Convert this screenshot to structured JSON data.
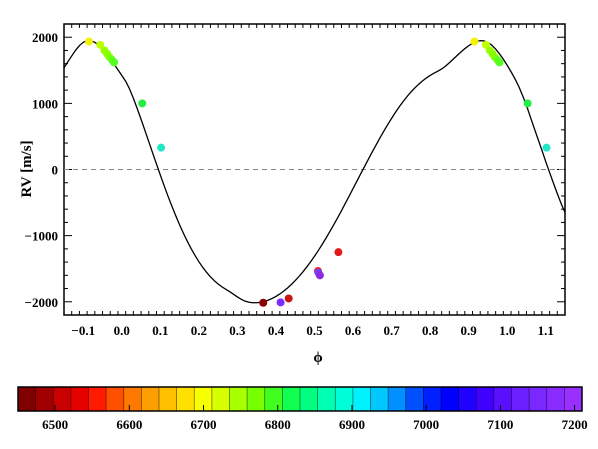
{
  "chart_data": {
    "type": "scatter",
    "xlabel": "ϕ",
    "ylabel": "RV [m/s]",
    "xlim": [
      -0.15,
      1.15
    ],
    "ylim": [
      -2200,
      2200
    ],
    "x_ticks": [
      -0.1,
      0.0,
      0.1,
      0.2,
      0.3,
      0.4,
      0.5,
      0.6,
      0.7,
      0.8,
      0.9,
      1.0,
      1.1
    ],
    "x_tick_labels": [
      "−0.1",
      "0.0",
      "0.1",
      "0.2",
      "0.3",
      "0.4",
      "0.5",
      "0.6",
      "0.7",
      "0.8",
      "0.9",
      "1.0",
      "1.1"
    ],
    "y_ticks": [
      2000,
      1000,
      0,
      -1000,
      -2000
    ],
    "y_tick_labels": [
      "2000",
      "1000",
      "0",
      "−1000",
      "−2000"
    ],
    "zero_line": {
      "y": 0,
      "style": "dashed",
      "color": "#888888"
    },
    "model_curve": {
      "type": "line",
      "color": "#000000",
      "x": [
        -0.15,
        -0.14,
        -0.13,
        -0.12,
        -0.11,
        -0.1,
        -0.09,
        -0.08,
        -0.07,
        -0.06,
        -0.05,
        -0.04,
        -0.03,
        -0.02,
        -0.01,
        0.0,
        0.01,
        0.02,
        0.03,
        0.04,
        0.05,
        0.06,
        0.07,
        0.08,
        0.09,
        0.1,
        0.11,
        0.12,
        0.13,
        0.14,
        0.15,
        0.16,
        0.17,
        0.18,
        0.19,
        0.2,
        0.21,
        0.22,
        0.23,
        0.24,
        0.25,
        0.26,
        0.27,
        0.28,
        0.29,
        0.3,
        0.31,
        0.32,
        0.33,
        0.34,
        0.35,
        0.36,
        0.37,
        0.38,
        0.39,
        0.4,
        0.41,
        0.42,
        0.43,
        0.44,
        0.45,
        0.46,
        0.47,
        0.48,
        0.49,
        0.5,
        0.51,
        0.52,
        0.53,
        0.54,
        0.55,
        0.56,
        0.57,
        0.58,
        0.59,
        0.6,
        0.61,
        0.62,
        0.63,
        0.64,
        0.65,
        0.66,
        0.67,
        0.68,
        0.69,
        0.7,
        0.71,
        0.72,
        0.73,
        0.74,
        0.75,
        0.76,
        0.77,
        0.78,
        0.79,
        0.8,
        0.81,
        0.82,
        0.83,
        0.84,
        0.85,
        0.86,
        0.87,
        0.88,
        0.89,
        0.9,
        0.91,
        0.92,
        0.93,
        0.94,
        0.95,
        0.96,
        0.97,
        0.98,
        0.99,
        1.0,
        1.01,
        1.02,
        1.03,
        1.04,
        1.05,
        1.06,
        1.07,
        1.08,
        1.09,
        1.1,
        1.11,
        1.12,
        1.13,
        1.14,
        1.15
      ],
      "y": [
        1538,
        1628,
        1717,
        1802,
        1874,
        1924,
        1948,
        1947,
        1923,
        1880,
        1821,
        1751,
        1674,
        1592,
        1508,
        1421,
        1335,
        1219,
        1077,
        921,
        758,
        591,
        421,
        251,
        82,
        -85,
        -247,
        -405,
        -556,
        -700,
        -837,
        -966,
        -1086,
        -1198,
        -1300,
        -1394,
        -1479,
        -1555,
        -1622,
        -1681,
        -1732,
        -1775,
        -1812,
        -1848,
        -1887,
        -1927,
        -1963,
        -1991,
        -2007,
        -2015,
        -2015,
        -2008,
        -1995,
        -1975,
        -1950,
        -1919,
        -1882,
        -1839,
        -1792,
        -1739,
        -1680,
        -1616,
        -1547,
        -1473,
        -1395,
        -1311,
        -1224,
        -1132,
        -1036,
        -937,
        -835,
        -730,
        -622,
        -512,
        -401,
        -289,
        -176,
        -64,
        47,
        158,
        267,
        374,
        479,
        581,
        679,
        773,
        863,
        948,
        1028,
        1102,
        1170,
        1232,
        1288,
        1338,
        1383,
        1422,
        1456,
        1486,
        1520,
        1563,
        1614,
        1669,
        1724,
        1777,
        1827,
        1871,
        1908,
        1935,
        1948,
        1944,
        1921,
        1880,
        1821,
        1749,
        1667,
        1576,
        1478,
        1373,
        1257,
        1117,
        969,
        797,
        626,
        459,
        292,
        120,
        -44,
        -206,
        -365,
        -516,
        -652
      ]
    },
    "points": [
      {
        "x": -0.085,
        "y": 1935,
        "value": 6800,
        "color": "#f2f200"
      },
      {
        "x": -0.056,
        "y": 1885,
        "value": 6820,
        "color": "#bfff00"
      },
      {
        "x": -0.045,
        "y": 1800,
        "value": 6840,
        "color": "#99ff00"
      },
      {
        "x": -0.038,
        "y": 1750,
        "value": 6850,
        "color": "#8cff00"
      },
      {
        "x": -0.032,
        "y": 1700,
        "value": 6855,
        "color": "#80ff00"
      },
      {
        "x": -0.025,
        "y": 1655,
        "value": 6860,
        "color": "#66ff1a"
      },
      {
        "x": -0.02,
        "y": 1620,
        "value": 6865,
        "color": "#55ff22"
      },
      {
        "x": 0.053,
        "y": 1000,
        "value": 6890,
        "color": "#22ee44"
      },
      {
        "x": 0.102,
        "y": 330,
        "value": 6960,
        "color": "#22e8c8"
      },
      {
        "x": 0.367,
        "y": -2015,
        "value": 6480,
        "color": "#8b0000"
      },
      {
        "x": 0.412,
        "y": -2010,
        "value": 7180,
        "color": "#7d2cff"
      },
      {
        "x": 0.433,
        "y": -1950,
        "value": 6520,
        "color": "#c81414"
      },
      {
        "x": 0.509,
        "y": -1535,
        "value": 6560,
        "color": "#ee2222"
      },
      {
        "x": 0.51,
        "y": -1560,
        "value": 7150,
        "color": "#7040ff"
      },
      {
        "x": 0.514,
        "y": -1600,
        "value": 7200,
        "color": "#8a2be2"
      },
      {
        "x": 0.562,
        "y": -1250,
        "value": 6540,
        "color": "#e01a1a"
      },
      {
        "x": 0.915,
        "y": 1935,
        "value": 6800,
        "color": "#f2f200"
      },
      {
        "x": 0.945,
        "y": 1885,
        "value": 6820,
        "color": "#bfff00"
      },
      {
        "x": 0.955,
        "y": 1800,
        "value": 6840,
        "color": "#99ff00"
      },
      {
        "x": 0.962,
        "y": 1750,
        "value": 6850,
        "color": "#8cff00"
      },
      {
        "x": 0.968,
        "y": 1700,
        "value": 6855,
        "color": "#80ff00"
      },
      {
        "x": 0.975,
        "y": 1655,
        "value": 6860,
        "color": "#66ff1a"
      },
      {
        "x": 0.98,
        "y": 1620,
        "value": 6865,
        "color": "#55ff22"
      },
      {
        "x": 1.053,
        "y": 1000,
        "value": 6890,
        "color": "#22ee44"
      },
      {
        "x": 1.102,
        "y": 330,
        "value": 6960,
        "color": "#22e8c8"
      }
    ],
    "colorbar": {
      "range": [
        6450,
        7210
      ],
      "ticks": [
        6500,
        6600,
        6700,
        6800,
        6900,
        7000,
        7100,
        7200
      ],
      "tick_labels": [
        "6500",
        "6600",
        "6700",
        "6800",
        "6900",
        "7000",
        "7100",
        "7200"
      ],
      "colors": [
        "#800000",
        "#a00000",
        "#c80000",
        "#e60000",
        "#ff1a00",
        "#ff5000",
        "#ff7800",
        "#ff9e00",
        "#ffc000",
        "#ffe000",
        "#f8ff00",
        "#d6ff00",
        "#a8ff00",
        "#78ff00",
        "#40ff20",
        "#10ff50",
        "#00ff80",
        "#00ffb0",
        "#00ffd8",
        "#00f0ff",
        "#00c8ff",
        "#0090ff",
        "#0050ff",
        "#0020ff",
        "#0000ff",
        "#2000ff",
        "#4000ff",
        "#5a10ff",
        "#6a20ff",
        "#7a28ff",
        "#8a2cff",
        "#9a30ff"
      ]
    }
  }
}
